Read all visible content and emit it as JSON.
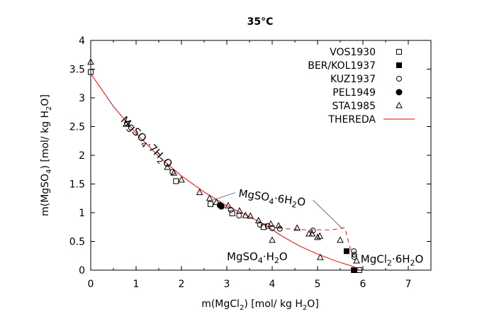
{
  "chart_data": {
    "type": "scatter",
    "title": "35°C",
    "xlabel": "m(MgCl2) [mol/ kg H2O]",
    "ylabel": "m(MgSO4) [mol/ kg H2O]",
    "xlim": [
      0,
      7.5
    ],
    "ylim": [
      0,
      4
    ],
    "xticks": [
      "0",
      "1",
      "2",
      "3",
      "4",
      "5",
      "6",
      "7"
    ],
    "yticks": [
      "0",
      "0.5",
      "1",
      "1.5",
      "2",
      "2.5",
      "3",
      "3.5",
      "4"
    ],
    "legend_position": "top-right",
    "series": [
      {
        "name": "VOS1930",
        "marker": "open-square",
        "points": [
          [
            0,
            3.45
          ],
          [
            1.88,
            1.55
          ],
          [
            2.64,
            1.15
          ],
          [
            3.12,
            0.99
          ],
          [
            3.81,
            0.75
          ],
          [
            5.92,
            0
          ]
        ]
      },
      {
        "name": "BER/KOL1937",
        "marker": "filled-square",
        "points": [
          [
            5.64,
            0.33
          ],
          [
            5.8,
            0
          ]
        ]
      },
      {
        "name": "KUZ1937",
        "marker": "open-circle",
        "points": [
          [
            0.8,
            2.55
          ],
          [
            1.8,
            1.71
          ],
          [
            3.09,
            1.05
          ],
          [
            3.27,
            0.95
          ],
          [
            3.73,
            0.79
          ],
          [
            3.9,
            0.77
          ],
          [
            4.0,
            0.73
          ],
          [
            4.17,
            0.72
          ],
          [
            4.9,
            0.69
          ],
          [
            5.8,
            0.33
          ],
          [
            5.81,
            0.27
          ],
          [
            5.81,
            0.23
          ]
        ]
      },
      {
        "name": "PEL1949",
        "marker": "filled-circle",
        "points": [
          [
            2.85,
            1.13
          ],
          [
            2.88,
            1.11
          ]
        ]
      },
      {
        "name": "STA1985",
        "marker": "open-triangle",
        "points": [
          [
            0,
            3.62
          ],
          [
            0.78,
            2.54
          ],
          [
            1.69,
            1.79
          ],
          [
            1.83,
            1.69
          ],
          [
            2.0,
            1.57
          ],
          [
            2.4,
            1.35
          ],
          [
            2.62,
            1.25
          ],
          [
            2.77,
            1.18
          ],
          [
            3.03,
            1.12
          ],
          [
            3.28,
            1.03
          ],
          [
            3.41,
            0.95
          ],
          [
            3.52,
            0.94
          ],
          [
            3.7,
            0.86
          ],
          [
            3.97,
            0.8
          ],
          [
            4.14,
            0.77
          ],
          [
            4.0,
            0.52
          ],
          [
            4.55,
            0.73
          ],
          [
            4.81,
            0.63
          ],
          [
            4.88,
            0.63
          ],
          [
            5.0,
            0.57
          ],
          [
            5.05,
            0.59
          ],
          [
            5.06,
            0.22
          ],
          [
            5.5,
            0.52
          ],
          [
            5.86,
            0.16
          ]
        ]
      },
      {
        "name": "THEREDA",
        "marker": "red-line",
        "color": "#ff0000",
        "stable": [
          [
            0,
            3.42
          ],
          [
            0.5,
            2.85
          ],
          [
            1,
            2.38
          ],
          [
            1.5,
            1.98
          ],
          [
            2,
            1.64
          ],
          [
            2.5,
            1.36
          ],
          [
            3,
            1.12
          ],
          [
            3.5,
            0.93
          ],
          [
            3.8,
            0.81
          ],
          [
            4.2,
            0.6
          ],
          [
            4.6,
            0.42
          ],
          [
            5,
            0.28
          ],
          [
            5.4,
            0.16
          ],
          [
            5.8,
            0.06
          ],
          [
            5.92,
            0
          ]
        ],
        "metastable": [
          [
            3.8,
            0.81
          ],
          [
            4.3,
            0.72
          ],
          [
            4.8,
            0.7
          ],
          [
            5.3,
            0.7
          ],
          [
            5.6,
            0.74
          ],
          [
            5.68,
            0.5
          ],
          [
            5.75,
            0.3
          ],
          [
            5.8,
            0.2
          ]
        ]
      }
    ],
    "annotations": [
      {
        "text": "MgSO4·7H2O",
        "at": [
          0.65,
          2.6
        ]
      },
      {
        "text": "MgSO4·6H2O",
        "at": [
          3.25,
          1.28
        ],
        "pointers": [
          [
            2.62,
            1.2
          ],
          [
            5.55,
            0.72
          ]
        ]
      },
      {
        "text": "MgSO4·H2O",
        "at": [
          3.0,
          0.17
        ]
      },
      {
        "text": "MgCl2·6H2O",
        "at": [
          5.95,
          0.13
        ]
      }
    ]
  }
}
